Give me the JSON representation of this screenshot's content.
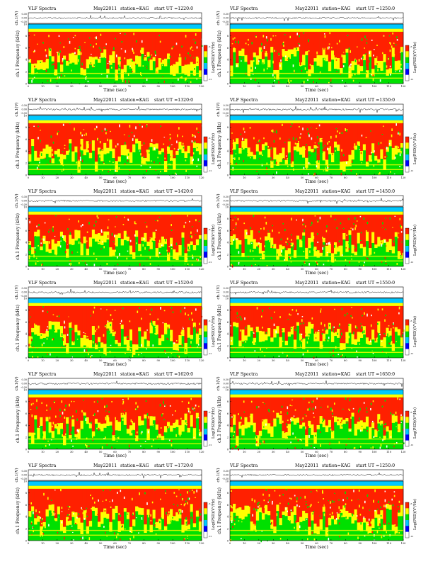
{
  "colors": {
    "spec_low": "#00c8ff",
    "spec_mid": "#00e000",
    "spec_high": "#ffff00",
    "spec_top": "#ff2000",
    "trace": "#000000",
    "colorbar": [
      "#ffffff",
      "#0000ff",
      "#00c8ff",
      "#00e000",
      "#ffff00",
      "#ff2000"
    ]
  },
  "chart_data": [
    {
      "type": "heatmap",
      "title": {
        "label": "VLF Spectra",
        "date": "May22011",
        "station": "station=KAG",
        "start": "start UT =1220:0"
      },
      "trace_ylabel": "ch.1(V)",
      "trace_ticks": [
        "0.30",
        "0.00",
        "-0.30"
      ],
      "ylabel": "ch.1 Frequency (kHz)",
      "xlabel": "Time (sec)",
      "xlim": [
        0,
        120
      ],
      "ylim": [
        0,
        10
      ],
      "xticks": [
        0,
        10,
        20,
        30,
        40,
        50,
        60,
        70,
        80,
        90,
        100,
        110,
        120
      ],
      "yticks": [
        0,
        2,
        4,
        6,
        8,
        10
      ],
      "colorbar_label": "Log(PSD)(V²/Hz)",
      "colorbar_ticks": [
        "-6",
        "-12"
      ]
    },
    {
      "type": "heatmap",
      "title": {
        "label": "VLF Spectra",
        "date": "May22011",
        "station": "station=KAG",
        "start": "start UT =1250:0"
      },
      "trace_ylabel": "ch.1(V)",
      "trace_ticks": [
        "0.30",
        "0.00",
        "-0.30"
      ],
      "ylabel": "ch.1 Frequency (kHz)",
      "xlabel": "Time (sec)",
      "xlim": [
        0,
        120
      ],
      "ylim": [
        0,
        10
      ],
      "xticks": [
        0,
        10,
        20,
        30,
        40,
        50,
        60,
        70,
        80,
        90,
        100,
        110,
        120
      ],
      "yticks": [
        0,
        2,
        4,
        6,
        8,
        10
      ],
      "colorbar_label": "Log(PSD)(V²/Hz)",
      "colorbar_ticks": [
        "-6",
        "-12"
      ]
    },
    {
      "type": "heatmap",
      "title": {
        "label": "VLF Spectra",
        "date": "May22011",
        "station": "station=KAG",
        "start": "start UT =1320:0"
      },
      "trace_ylabel": "ch.1(V)",
      "trace_ticks": [
        "0.30",
        "0.00",
        "-0.30"
      ],
      "ylabel": "ch.1 Frequency (kHz)",
      "xlabel": "Time (sec)",
      "xlim": [
        0,
        120
      ],
      "ylim": [
        0,
        10
      ],
      "xticks": [
        0,
        10,
        20,
        30,
        40,
        50,
        60,
        70,
        80,
        90,
        100,
        110,
        120
      ],
      "yticks": [
        0,
        2,
        4,
        6,
        8,
        10
      ],
      "colorbar_label": "Log(PSD)(V²/Hz)",
      "colorbar_ticks": [
        "-6",
        "-12"
      ]
    },
    {
      "type": "heatmap",
      "title": {
        "label": "VLF Spectra",
        "date": "May22011",
        "station": "station=KAG",
        "start": "start UT =1350:0"
      },
      "trace_ylabel": "ch.1(V)",
      "trace_ticks": [
        "0.30",
        "0.00",
        "-0.30"
      ],
      "ylabel": "ch.1 Frequency (kHz)",
      "xlabel": "Time (sec)",
      "xlim": [
        0,
        120
      ],
      "ylim": [
        0,
        10
      ],
      "xticks": [
        0,
        10,
        20,
        30,
        40,
        50,
        60,
        70,
        80,
        90,
        100,
        110,
        120
      ],
      "yticks": [
        0,
        2,
        4,
        6,
        8,
        10
      ],
      "colorbar_label": "Log(PSD)(V²/Hz)",
      "colorbar_ticks": [
        "-6",
        "-12"
      ]
    },
    {
      "type": "heatmap",
      "title": {
        "label": "VLF Spectra",
        "date": "May22011",
        "station": "station=KAG",
        "start": "start UT =1420:0"
      },
      "trace_ylabel": "ch.1(V)",
      "trace_ticks": [
        "0.30",
        "0.00",
        "-0.30"
      ],
      "ylabel": "ch.1 Frequency (kHz)",
      "xlabel": "Time (sec)",
      "xlim": [
        0,
        120
      ],
      "ylim": [
        0,
        10
      ],
      "xticks": [
        0,
        10,
        20,
        30,
        40,
        50,
        60,
        70,
        80,
        90,
        100,
        110,
        120
      ],
      "yticks": [
        0,
        2,
        4,
        6,
        8,
        10
      ],
      "colorbar_label": "Log(PSD)(V²/Hz)",
      "colorbar_ticks": [
        "-6",
        "-12"
      ]
    },
    {
      "type": "heatmap",
      "title": {
        "label": "VLF Spectra",
        "date": "May22011",
        "station": "station=KAG",
        "start": "start UT =1450:0"
      },
      "trace_ylabel": "ch.1(V)",
      "trace_ticks": [
        "0.30",
        "0.00",
        "-0.30"
      ],
      "ylabel": "ch.1 Frequency (kHz)",
      "xlabel": "Time (sec)",
      "xlim": [
        0,
        120
      ],
      "ylim": [
        0,
        10
      ],
      "xticks": [
        0,
        10,
        20,
        30,
        40,
        50,
        60,
        70,
        80,
        90,
        100,
        110,
        120
      ],
      "yticks": [
        0,
        2,
        4,
        6,
        8,
        10
      ],
      "colorbar_label": "Log(PSD)(V²/Hz)",
      "colorbar_ticks": [
        "-6",
        "-12"
      ]
    },
    {
      "type": "heatmap",
      "title": {
        "label": "VLF Spectra",
        "date": "May22011",
        "station": "station=KAG",
        "start": "start UT =1520:0"
      },
      "trace_ylabel": "ch.1(V)",
      "trace_ticks": [
        "0.30",
        "0.00",
        "-0.30"
      ],
      "ylabel": "ch.1 Frequency (kHz)",
      "xlabel": "Time (sec)",
      "xlim": [
        0,
        120
      ],
      "ylim": [
        0,
        10
      ],
      "xticks": [
        0,
        10,
        20,
        30,
        40,
        50,
        60,
        70,
        80,
        90,
        100,
        110,
        120
      ],
      "yticks": [
        0,
        2,
        4,
        6,
        8,
        10
      ],
      "colorbar_label": "Log(PSD)(V²/Hz)",
      "colorbar_ticks": [
        "-6",
        "-12"
      ]
    },
    {
      "type": "heatmap",
      "title": {
        "label": "VLF Spectra",
        "date": "May22011",
        "station": "station=KAG",
        "start": "start UT =1550:0"
      },
      "trace_ylabel": "ch.1(V)",
      "trace_ticks": [
        "0.30",
        "0.00",
        "-0.30"
      ],
      "ylabel": "ch.1 Frequency (kHz)",
      "xlabel": "Time (sec)",
      "xlim": [
        0,
        120
      ],
      "ylim": [
        0,
        10
      ],
      "xticks": [
        0,
        10,
        20,
        30,
        40,
        50,
        60,
        70,
        80,
        90,
        100,
        110,
        120
      ],
      "yticks": [
        0,
        2,
        4,
        6,
        8,
        10
      ],
      "colorbar_label": "Log(PSD)(V²/Hz)",
      "colorbar_ticks": [
        "-6",
        "-12"
      ]
    },
    {
      "type": "heatmap",
      "title": {
        "label": "VLF Spectra",
        "date": "May22011",
        "station": "station=KAG",
        "start": "start UT =1620:0"
      },
      "trace_ylabel": "ch.1(V)",
      "trace_ticks": [
        "0.30",
        "0.00",
        "-0.30"
      ],
      "ylabel": "ch.1 Frequency (kHz)",
      "xlabel": "Time (sec)",
      "xlim": [
        0,
        120
      ],
      "ylim": [
        0,
        10
      ],
      "xticks": [
        0,
        10,
        20,
        30,
        40,
        50,
        60,
        70,
        80,
        90,
        100,
        110,
        120
      ],
      "yticks": [
        0,
        2,
        4,
        6,
        8,
        10
      ],
      "colorbar_label": "Log(PSD)(V²/Hz)",
      "colorbar_ticks": [
        "-6",
        "-12"
      ]
    },
    {
      "type": "heatmap",
      "title": {
        "label": "VLF Spectra",
        "date": "May22011",
        "station": "station=KAG",
        "start": "start UT =1650:0"
      },
      "trace_ylabel": "ch.1(V)",
      "trace_ticks": [
        "0.30",
        "0.00",
        "-0.30"
      ],
      "ylabel": "ch.1 Frequency (kHz)",
      "xlabel": "Time (sec)",
      "xlim": [
        0,
        120
      ],
      "ylim": [
        0,
        10
      ],
      "xticks": [
        0,
        10,
        20,
        30,
        40,
        50,
        60,
        70,
        80,
        90,
        100,
        110,
        120
      ],
      "yticks": [
        0,
        2,
        4,
        6,
        8,
        10
      ],
      "colorbar_label": "Log(PSD)(V²/Hz)",
      "colorbar_ticks": [
        "-6",
        "-12"
      ]
    },
    {
      "type": "heatmap",
      "title": {
        "label": "VLF Spectra",
        "date": "May22011",
        "station": "station=KAG",
        "start": "start UT =1720:0"
      },
      "trace_ylabel": "ch.1(V)",
      "trace_ticks": [
        "0.30",
        "0.00",
        "-0.30"
      ],
      "ylabel": "ch.1 Frequency (kHz)",
      "xlabel": "Time (sec)",
      "xlim": [
        0,
        120
      ],
      "ylim": [
        0,
        10
      ],
      "xticks": [
        0,
        10,
        20,
        30,
        40,
        50,
        60,
        70,
        80,
        90,
        100,
        110,
        120
      ],
      "yticks": [
        0,
        2,
        4,
        6,
        8,
        10
      ],
      "colorbar_label": "Log(PSD)(V²/Hz)",
      "colorbar_ticks": [
        "-6",
        "-12"
      ]
    },
    {
      "type": "heatmap",
      "title": {
        "label": "VLF Spectra",
        "date": "May22011",
        "station": "station=KAG",
        "start": "start UT =1250:0"
      },
      "trace_ylabel": "ch.1(V)",
      "trace_ticks": [
        "0.30",
        "0.00",
        "-0.30"
      ],
      "ylabel": "ch.1 Frequency (kHz)",
      "xlabel": "Time (sec)",
      "xlim": [
        0,
        120
      ],
      "ylim": [
        0,
        10
      ],
      "xticks": [
        0,
        10,
        20,
        30,
        40,
        50,
        60,
        70,
        80,
        90,
        100,
        110,
        120
      ],
      "yticks": [
        0,
        2,
        4,
        6,
        8,
        10
      ],
      "colorbar_label": "Log(PSD)(V²/Hz)",
      "colorbar_ticks": [
        "-6",
        "-12"
      ]
    }
  ]
}
